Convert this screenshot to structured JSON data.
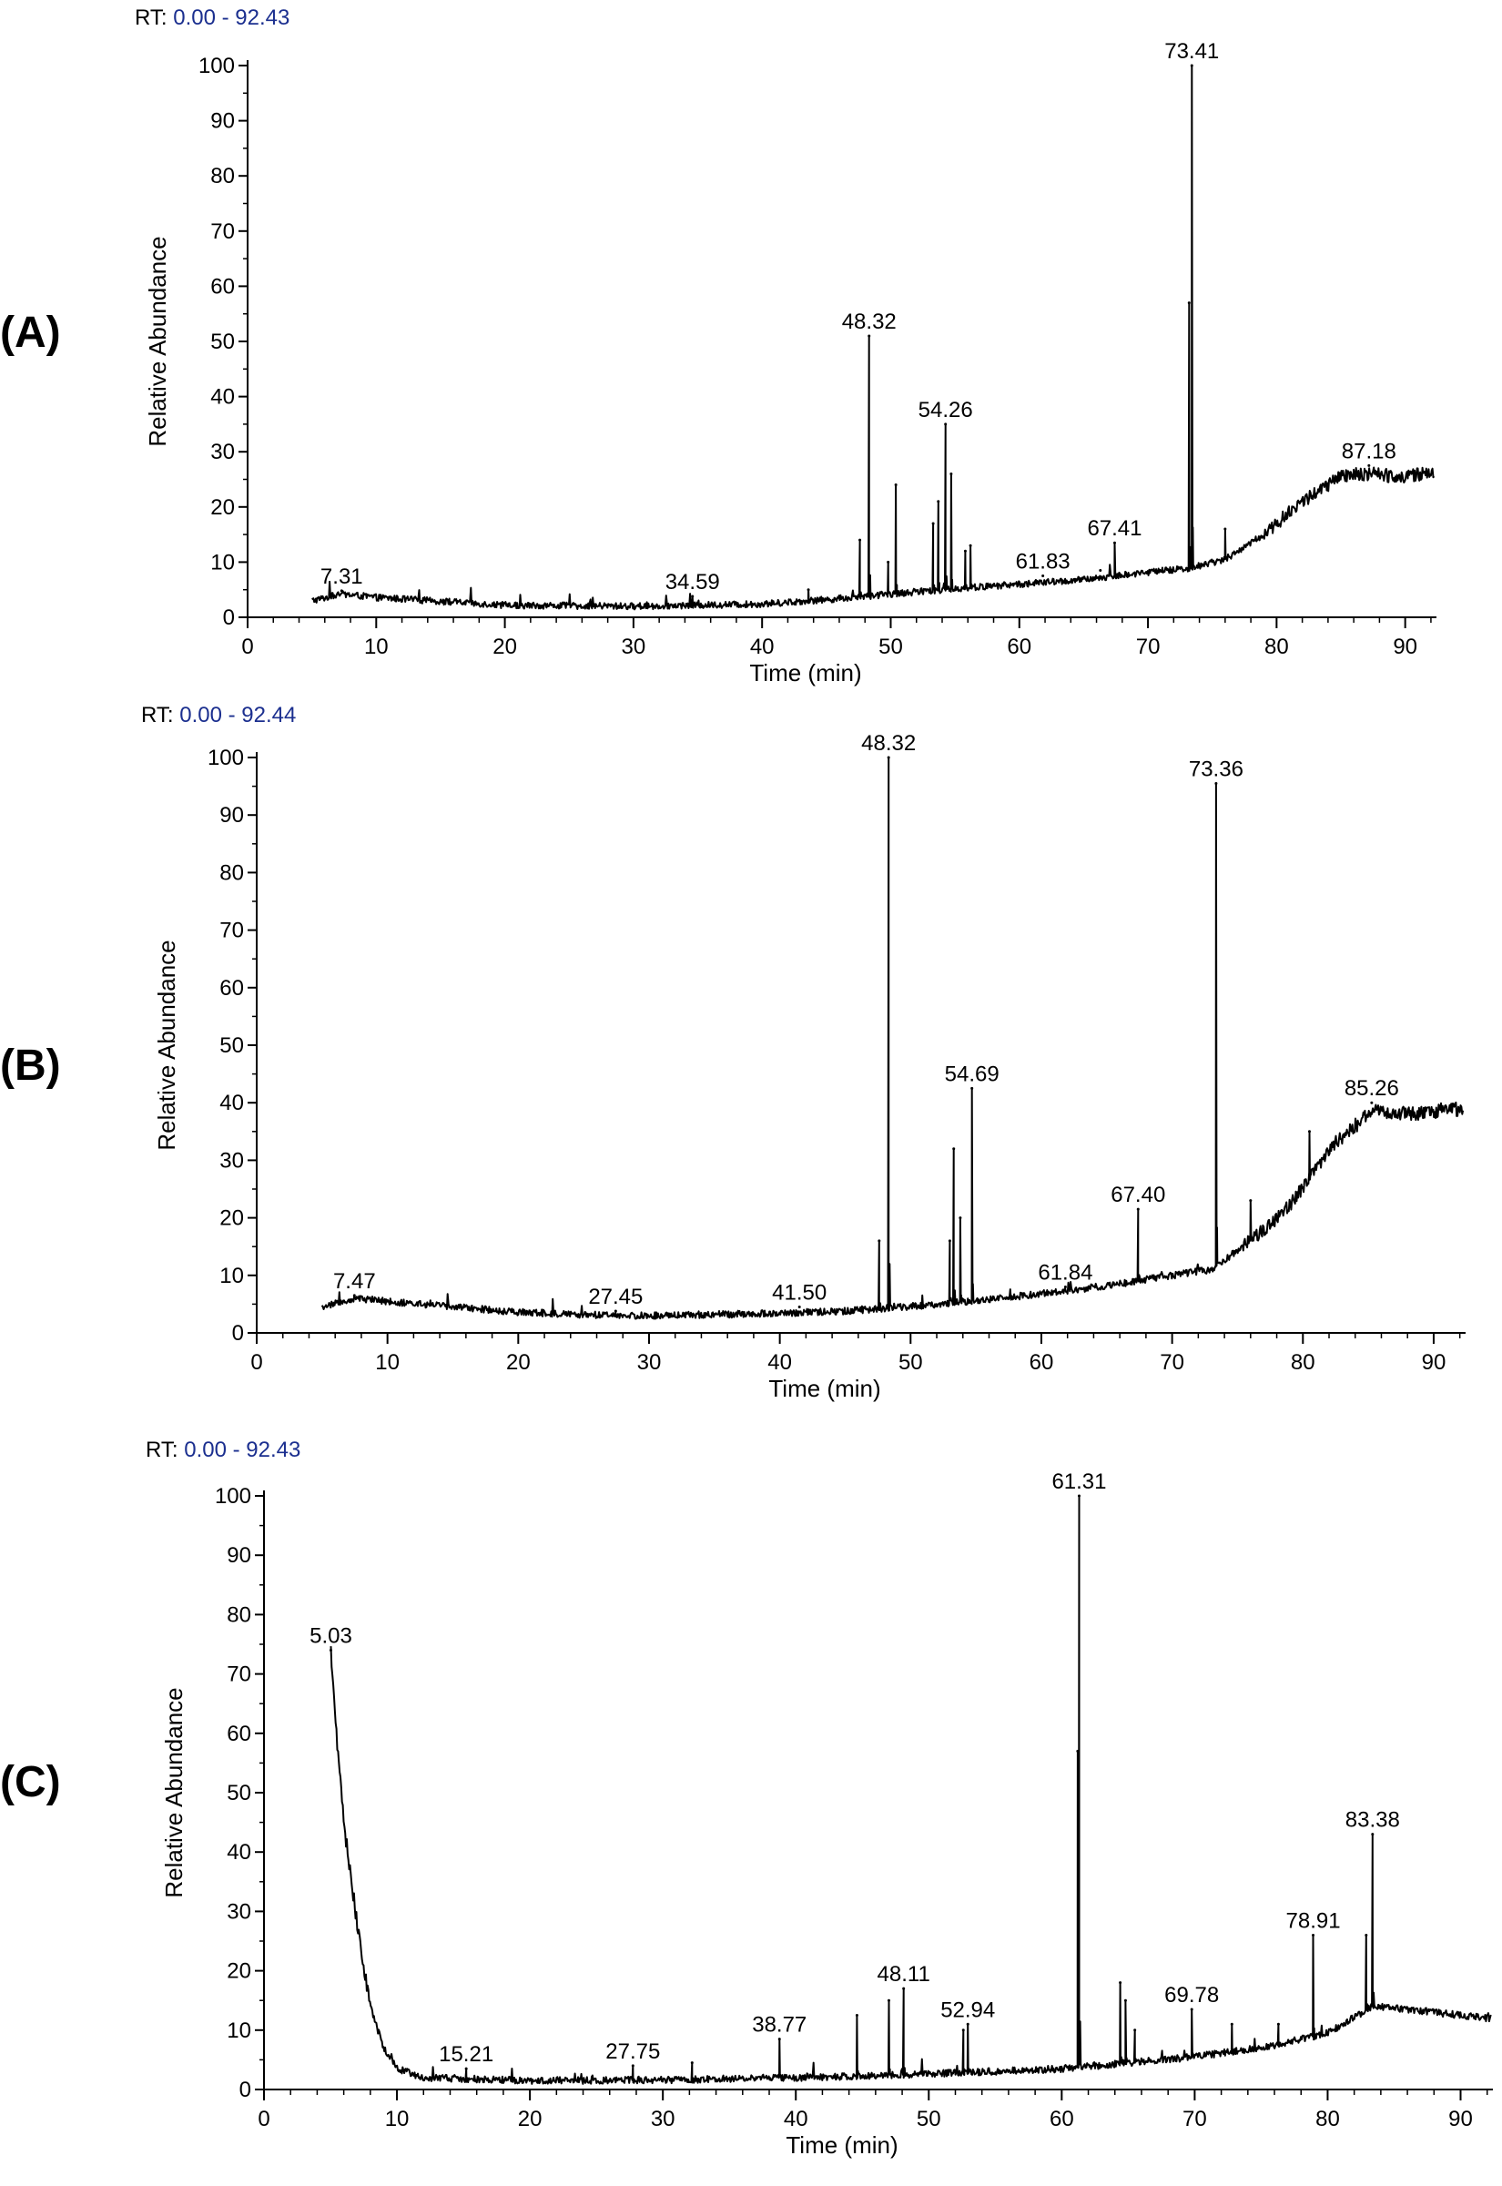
{
  "chart_data": [
    {
      "type": "line",
      "panel_label": "(A)",
      "rt_label": "RT:",
      "rt_range": "0.00 - 92.43",
      "xlabel": "Time (min)",
      "ylabel": "Relative Abundance",
      "xlim": [
        0,
        92.43
      ],
      "ylim": [
        0,
        100
      ],
      "x_ticks": [
        0,
        10,
        20,
        30,
        40,
        50,
        60,
        70,
        80,
        90
      ],
      "y_ticks": [
        0,
        10,
        20,
        30,
        40,
        50,
        60,
        70,
        80,
        90,
        100
      ],
      "baseline": [
        [
          5.0,
          3.0
        ],
        [
          7.3,
          4.2
        ],
        [
          10,
          3.6
        ],
        [
          20,
          2.2
        ],
        [
          30,
          2.0
        ],
        [
          40,
          2.4
        ],
        [
          45,
          3.2
        ],
        [
          50,
          4.2
        ],
        [
          55,
          5.2
        ],
        [
          60,
          6.0
        ],
        [
          65,
          6.8
        ],
        [
          70,
          8.2
        ],
        [
          73,
          8.8
        ],
        [
          76,
          10.5
        ],
        [
          79,
          15.0
        ],
        [
          82,
          21.0
        ],
        [
          85,
          25.5
        ],
        [
          87.18,
          26.0
        ],
        [
          90,
          25.5
        ],
        [
          92.3,
          26.5
        ]
      ],
      "peaks": [
        {
          "rt": 7.31,
          "height": 4.8,
          "label": "7.31"
        },
        {
          "rt": 34.59,
          "height": 3.8,
          "label": "34.59"
        },
        {
          "rt": 43.6,
          "height": 5.0
        },
        {
          "rt": 47.6,
          "height": 14.0
        },
        {
          "rt": 48.32,
          "height": 51.0,
          "label": "48.32"
        },
        {
          "rt": 49.8,
          "height": 10.0
        },
        {
          "rt": 50.4,
          "height": 24.0
        },
        {
          "rt": 53.3,
          "height": 17.0
        },
        {
          "rt": 53.7,
          "height": 21.0
        },
        {
          "rt": 54.26,
          "height": 35.0,
          "label": "54.26"
        },
        {
          "rt": 54.7,
          "height": 26.0
        },
        {
          "rt": 55.8,
          "height": 12.0
        },
        {
          "rt": 56.2,
          "height": 13.0
        },
        {
          "rt": 61.83,
          "height": 7.5,
          "label": "61.83"
        },
        {
          "rt": 66.3,
          "height": 8.5
        },
        {
          "rt": 67.41,
          "height": 13.5,
          "label": "67.41"
        },
        {
          "rt": 73.2,
          "height": 57.0
        },
        {
          "rt": 73.41,
          "height": 100.0,
          "label": "73.41"
        },
        {
          "rt": 76.0,
          "height": 16.0
        },
        {
          "rt": 87.18,
          "height": 27.5,
          "label": "87.18"
        }
      ]
    },
    {
      "type": "line",
      "panel_label": "(B)",
      "rt_label": "RT:",
      "rt_range": "0.00 - 92.44",
      "xlabel": "Time (min)",
      "ylabel": "Relative Abundance",
      "xlim": [
        0,
        92.44
      ],
      "ylim": [
        0,
        100
      ],
      "x_ticks": [
        0,
        10,
        20,
        30,
        40,
        50,
        60,
        70,
        80,
        90
      ],
      "y_ticks": [
        0,
        10,
        20,
        30,
        40,
        50,
        60,
        70,
        80,
        90,
        100
      ],
      "baseline": [
        [
          5.0,
          4.5
        ],
        [
          7.47,
          6.0
        ],
        [
          10,
          5.5
        ],
        [
          20,
          3.6
        ],
        [
          27.45,
          3.0
        ],
        [
          30,
          3.0
        ],
        [
          40,
          3.4
        ],
        [
          45,
          3.8
        ],
        [
          50,
          4.6
        ],
        [
          55,
          5.6
        ],
        [
          60,
          6.8
        ],
        [
          65,
          8.2
        ],
        [
          70,
          10.0
        ],
        [
          73,
          11.0
        ],
        [
          76,
          16.0
        ],
        [
          79,
          22.0
        ],
        [
          82,
          32.0
        ],
        [
          85.26,
          38.5
        ],
        [
          88,
          38.0
        ],
        [
          92.3,
          39.0
        ]
      ],
      "peaks": [
        {
          "rt": 7.47,
          "height": 6.5,
          "label": "7.47"
        },
        {
          "rt": 27.45,
          "height": 3.8,
          "label": "27.45"
        },
        {
          "rt": 41.5,
          "height": 4.5,
          "label": "41.50"
        },
        {
          "rt": 47.6,
          "height": 16.0
        },
        {
          "rt": 48.32,
          "height": 100.0,
          "label": "48.32"
        },
        {
          "rt": 53.0,
          "height": 16.0
        },
        {
          "rt": 53.3,
          "height": 32.0
        },
        {
          "rt": 53.8,
          "height": 20.0
        },
        {
          "rt": 54.69,
          "height": 42.5,
          "label": "54.69"
        },
        {
          "rt": 61.84,
          "height": 8.0,
          "label": "61.84"
        },
        {
          "rt": 67.4,
          "height": 21.5,
          "label": "67.40"
        },
        {
          "rt": 73.36,
          "height": 95.5,
          "label": "73.36"
        },
        {
          "rt": 76.0,
          "height": 23.0
        },
        {
          "rt": 80.5,
          "height": 35.0
        },
        {
          "rt": 85.26,
          "height": 40.0,
          "label": "85.26"
        }
      ]
    },
    {
      "type": "line",
      "panel_label": "(C)",
      "rt_label": "RT:",
      "rt_range": "0.00 - 92.43",
      "xlabel": "Time (min)",
      "ylabel": "Relative Abundance",
      "xlim": [
        0,
        92.43
      ],
      "ylim": [
        0,
        100
      ],
      "x_ticks": [
        0,
        10,
        20,
        30,
        40,
        50,
        60,
        70,
        80,
        90
      ],
      "y_ticks": [
        0,
        10,
        20,
        30,
        40,
        50,
        60,
        70,
        80,
        90,
        100
      ],
      "baseline": [
        [
          5.03,
          74.0
        ],
        [
          5.5,
          58.0
        ],
        [
          6.0,
          45.0
        ],
        [
          7.0,
          28.0
        ],
        [
          8.0,
          14.0
        ],
        [
          9.0,
          7.0
        ],
        [
          10.0,
          3.5
        ],
        [
          12.0,
          2.0
        ],
        [
          20,
          1.5
        ],
        [
          30,
          1.6
        ],
        [
          40,
          2.0
        ],
        [
          50,
          2.6
        ],
        [
          60,
          3.5
        ],
        [
          65,
          4.5
        ],
        [
          70,
          5.5
        ],
        [
          75,
          7.0
        ],
        [
          80,
          9.5
        ],
        [
          83.38,
          14.0
        ],
        [
          86,
          13.5
        ],
        [
          90,
          12.5
        ],
        [
          92.3,
          12.0
        ]
      ],
      "peaks": [
        {
          "rt": 5.03,
          "height": 74.0,
          "label": "5.03"
        },
        {
          "rt": 15.21,
          "height": 3.5,
          "label": "15.21"
        },
        {
          "rt": 27.75,
          "height": 4.0,
          "label": "27.75"
        },
        {
          "rt": 32.2,
          "height": 4.5
        },
        {
          "rt": 38.77,
          "height": 8.5,
          "label": "38.77"
        },
        {
          "rt": 44.6,
          "height": 12.5
        },
        {
          "rt": 47.0,
          "height": 15.0
        },
        {
          "rt": 48.11,
          "height": 17.0,
          "label": "48.11"
        },
        {
          "rt": 52.6,
          "height": 10.0
        },
        {
          "rt": 52.94,
          "height": 11.0,
          "label": "52.94"
        },
        {
          "rt": 61.2,
          "height": 57.0
        },
        {
          "rt": 61.31,
          "height": 100.0,
          "label": "61.31"
        },
        {
          "rt": 64.4,
          "height": 18.0
        },
        {
          "rt": 64.8,
          "height": 15.0
        },
        {
          "rt": 65.5,
          "height": 10.0
        },
        {
          "rt": 69.78,
          "height": 13.5,
          "label": "69.78"
        },
        {
          "rt": 72.8,
          "height": 11.0
        },
        {
          "rt": 76.3,
          "height": 11.0
        },
        {
          "rt": 78.91,
          "height": 26.0,
          "label": "78.91"
        },
        {
          "rt": 82.9,
          "height": 26.0
        },
        {
          "rt": 83.38,
          "height": 43.0,
          "label": "83.38"
        }
      ]
    }
  ]
}
